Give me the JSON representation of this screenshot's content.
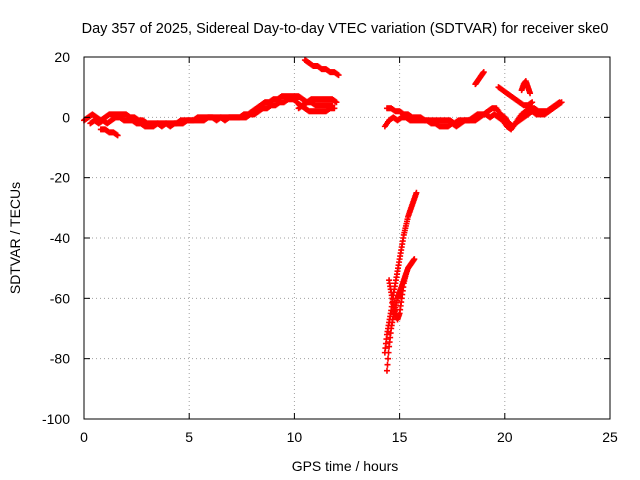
{
  "chart_data": {
    "type": "scatter",
    "title": "Day 357 of 2025, Sidereal Day-to-day VTEC variation (SDTVAR) for receiver ske0",
    "xlabel": "GPS time / hours",
    "ylabel": "SDTVAR / TECUs",
    "xlim": [
      0,
      25
    ],
    "ylim": [
      -100,
      20
    ],
    "xticks": [
      0,
      5,
      10,
      15,
      20,
      25
    ],
    "yticks": [
      -100,
      -80,
      -60,
      -40,
      -20,
      0,
      20
    ],
    "xtick_labels": [
      "0",
      "5",
      "10",
      "15",
      "20",
      "25"
    ],
    "ytick_labels": [
      "-100",
      "-80",
      "-60",
      "-40",
      "-20",
      "0",
      "20"
    ],
    "grid": true,
    "marker": "+",
    "series": [
      {
        "name": "SDTVAR",
        "color": "#ff0000",
        "segments": [
          [
            [
              0.0,
              -1
            ],
            [
              0.2,
              0
            ],
            [
              0.4,
              1
            ],
            [
              0.6,
              0
            ],
            [
              0.8,
              -1
            ],
            [
              1.0,
              0
            ],
            [
              1.2,
              1
            ],
            [
              1.4,
              1
            ],
            [
              1.6,
              1
            ],
            [
              1.8,
              1
            ],
            [
              2.0,
              1
            ],
            [
              2.2,
              0
            ],
            [
              2.4,
              0
            ],
            [
              2.6,
              -1
            ],
            [
              2.8,
              -1
            ],
            [
              3.0,
              -2
            ],
            [
              3.2,
              -2
            ],
            [
              3.4,
              -2
            ],
            [
              3.6,
              -2
            ],
            [
              3.8,
              -2
            ],
            [
              4.0,
              -2
            ],
            [
              4.2,
              -2
            ],
            [
              4.4,
              -2
            ],
            [
              4.6,
              -1
            ],
            [
              4.8,
              -1
            ],
            [
              5.0,
              -1
            ],
            [
              5.2,
              -1
            ],
            [
              5.4,
              0
            ],
            [
              5.6,
              0
            ],
            [
              5.8,
              0
            ],
            [
              6.0,
              0
            ],
            [
              6.2,
              0
            ],
            [
              6.4,
              0
            ],
            [
              6.6,
              0
            ],
            [
              6.8,
              0
            ],
            [
              7.0,
              0
            ],
            [
              7.2,
              0
            ],
            [
              7.4,
              0
            ],
            [
              7.6,
              1
            ],
            [
              7.8,
              1
            ],
            [
              8.0,
              2
            ],
            [
              8.2,
              3
            ],
            [
              8.4,
              4
            ],
            [
              8.6,
              5
            ],
            [
              8.8,
              5
            ],
            [
              9.0,
              6
            ],
            [
              9.2,
              6
            ],
            [
              9.4,
              7
            ],
            [
              9.6,
              7
            ],
            [
              9.8,
              7
            ],
            [
              10.0,
              7
            ],
            [
              10.2,
              7
            ],
            [
              10.4,
              6
            ],
            [
              10.6,
              5
            ],
            [
              10.8,
              5
            ],
            [
              11.0,
              4
            ],
            [
              11.2,
              4
            ],
            [
              11.4,
              4
            ],
            [
              11.6,
              4
            ],
            [
              11.8,
              4
            ]
          ],
          [
            [
              0.3,
              -2
            ],
            [
              0.5,
              -1
            ],
            [
              0.7,
              -2
            ],
            [
              0.9,
              -1
            ],
            [
              1.1,
              -2
            ],
            [
              1.3,
              -1
            ],
            [
              1.5,
              0
            ],
            [
              1.7,
              0
            ],
            [
              1.9,
              -1
            ],
            [
              2.1,
              -1
            ],
            [
              2.3,
              -1
            ],
            [
              2.5,
              -2
            ],
            [
              2.7,
              -2
            ],
            [
              2.9,
              -3
            ],
            [
              3.1,
              -3
            ],
            [
              3.3,
              -3
            ],
            [
              3.5,
              -2
            ],
            [
              3.7,
              -3
            ],
            [
              3.9,
              -2
            ],
            [
              4.1,
              -3
            ],
            [
              4.3,
              -2
            ],
            [
              4.5,
              -2
            ],
            [
              4.7,
              -2
            ],
            [
              4.9,
              -1
            ],
            [
              5.1,
              -1
            ],
            [
              5.3,
              -1
            ],
            [
              5.5,
              -1
            ],
            [
              5.7,
              -1
            ],
            [
              5.9,
              0
            ],
            [
              6.1,
              0
            ],
            [
              6.3,
              -1
            ],
            [
              6.5,
              0
            ],
            [
              6.7,
              -1
            ],
            [
              6.9,
              0
            ],
            [
              7.1,
              0
            ],
            [
              7.3,
              0
            ],
            [
              7.5,
              0
            ],
            [
              7.7,
              0
            ],
            [
              7.9,
              1
            ],
            [
              8.1,
              1
            ],
            [
              8.3,
              2
            ],
            [
              8.5,
              3
            ],
            [
              8.7,
              3
            ],
            [
              8.9,
              4
            ],
            [
              9.1,
              4
            ],
            [
              9.3,
              5
            ],
            [
              9.5,
              5
            ],
            [
              9.7,
              6
            ],
            [
              9.9,
              6
            ],
            [
              10.1,
              6
            ]
          ],
          [
            [
              0.8,
              -4
            ],
            [
              1.0,
              -4
            ],
            [
              1.2,
              -5
            ],
            [
              1.4,
              -5
            ],
            [
              1.6,
              -6
            ]
          ],
          [
            [
              10.1,
              5
            ],
            [
              10.3,
              4
            ],
            [
              10.5,
              3
            ],
            [
              10.7,
              2
            ],
            [
              10.9,
              2
            ],
            [
              11.1,
              2
            ],
            [
              11.3,
              2
            ],
            [
              11.5,
              2
            ],
            [
              11.7,
              3
            ],
            [
              11.9,
              3
            ]
          ],
          [
            [
              10.2,
              3
            ],
            [
              10.4,
              4
            ],
            [
              10.6,
              5
            ],
            [
              10.8,
              6
            ],
            [
              11.0,
              6
            ],
            [
              11.2,
              6
            ],
            [
              11.4,
              6
            ],
            [
              11.6,
              6
            ],
            [
              11.8,
              6
            ],
            [
              12.0,
              5
            ]
          ],
          [
            [
              10.5,
              19
            ],
            [
              10.7,
              18
            ],
            [
              10.9,
              17
            ],
            [
              11.1,
              17
            ],
            [
              11.3,
              16
            ],
            [
              11.5,
              16
            ],
            [
              11.7,
              15
            ],
            [
              11.9,
              15
            ],
            [
              12.1,
              14
            ]
          ],
          [
            [
              14.4,
              3
            ],
            [
              14.6,
              3
            ],
            [
              14.8,
              2
            ],
            [
              15.0,
              2
            ],
            [
              15.2,
              1
            ],
            [
              15.4,
              1
            ],
            [
              15.6,
              0
            ],
            [
              15.8,
              0
            ],
            [
              16.0,
              0
            ],
            [
              16.2,
              -1
            ],
            [
              16.4,
              -1
            ],
            [
              16.6,
              -1
            ],
            [
              16.8,
              -1
            ],
            [
              17.0,
              -1
            ],
            [
              17.2,
              -1
            ],
            [
              17.4,
              -1
            ],
            [
              17.6,
              -2
            ],
            [
              17.8,
              -1
            ],
            [
              18.0,
              -1
            ],
            [
              18.2,
              -1
            ],
            [
              18.4,
              -1
            ],
            [
              18.6,
              -1
            ],
            [
              18.8,
              0
            ],
            [
              19.0,
              1
            ],
            [
              19.2,
              2
            ],
            [
              19.4,
              3
            ],
            [
              19.6,
              3
            ],
            [
              19.8,
              1
            ],
            [
              20.0,
              0
            ],
            [
              20.2,
              -2
            ],
            [
              20.4,
              -3
            ],
            [
              20.6,
              -1
            ],
            [
              20.8,
              1
            ],
            [
              21.0,
              2
            ],
            [
              21.2,
              3
            ],
            [
              21.4,
              3
            ],
            [
              21.6,
              2
            ],
            [
              21.8,
              2
            ],
            [
              22.0,
              2
            ],
            [
              22.2,
              3
            ],
            [
              22.4,
              4
            ],
            [
              22.6,
              5
            ]
          ],
          [
            [
              14.3,
              -3
            ],
            [
              14.5,
              -1
            ],
            [
              14.7,
              0
            ],
            [
              14.9,
              -1
            ],
            [
              15.1,
              0
            ],
            [
              15.3,
              0
            ],
            [
              15.5,
              -1
            ],
            [
              15.7,
              -1
            ],
            [
              15.9,
              -1
            ],
            [
              16.1,
              -1
            ],
            [
              16.3,
              -1
            ],
            [
              16.5,
              -2
            ],
            [
              16.7,
              -2
            ],
            [
              16.9,
              -3
            ],
            [
              17.1,
              -3
            ],
            [
              17.3,
              -3
            ],
            [
              17.5,
              -2
            ],
            [
              17.7,
              -3
            ],
            [
              17.9,
              -2
            ],
            [
              18.1,
              -1
            ],
            [
              18.3,
              -1
            ],
            [
              18.5,
              0
            ],
            [
              18.7,
              1
            ],
            [
              18.9,
              1
            ],
            [
              19.1,
              1
            ],
            [
              19.3,
              0
            ],
            [
              19.5,
              1
            ],
            [
              19.7,
              0
            ],
            [
              19.9,
              -1
            ],
            [
              20.1,
              -3
            ],
            [
              20.3,
              -4
            ],
            [
              20.5,
              -2
            ],
            [
              20.7,
              -1
            ],
            [
              20.9,
              0
            ],
            [
              21.1,
              1
            ],
            [
              21.3,
              2
            ],
            [
              21.5,
              1
            ],
            [
              21.7,
              1
            ],
            [
              21.9,
              1
            ],
            [
              22.1,
              2
            ],
            [
              22.3,
              3
            ],
            [
              22.5,
              4
            ],
            [
              22.7,
              5
            ]
          ],
          [
            [
              18.6,
              11
            ],
            [
              18.7,
              12
            ],
            [
              18.8,
              13
            ],
            [
              18.9,
              14
            ],
            [
              19.0,
              15
            ]
          ],
          [
            [
              19.7,
              10
            ],
            [
              19.9,
              9
            ],
            [
              20.1,
              8
            ],
            [
              20.3,
              7
            ],
            [
              20.5,
              6
            ],
            [
              20.7,
              5
            ],
            [
              20.9,
              4
            ],
            [
              21.1,
              4
            ],
            [
              21.3,
              5
            ]
          ],
          [
            [
              20.8,
              9
            ],
            [
              20.9,
              11
            ],
            [
              21.0,
              12
            ],
            [
              21.1,
              10
            ],
            [
              21.2,
              8
            ]
          ],
          [
            [
              14.3,
              -78
            ],
            [
              14.4,
              -72
            ],
            [
              14.5,
              -68
            ],
            [
              14.6,
              -64
            ],
            [
              14.7,
              -59
            ],
            [
              14.8,
              -55
            ],
            [
              14.9,
              -51
            ],
            [
              15.0,
              -47
            ],
            [
              15.1,
              -43
            ],
            [
              15.2,
              -39
            ],
            [
              15.3,
              -36
            ],
            [
              15.4,
              -33
            ],
            [
              15.5,
              -31
            ],
            [
              15.6,
              -29
            ],
            [
              15.7,
              -27
            ],
            [
              15.8,
              -25
            ]
          ],
          [
            [
              14.4,
              -84
            ],
            [
              14.5,
              -76
            ],
            [
              14.6,
              -70
            ],
            [
              14.7,
              -66
            ],
            [
              14.8,
              -63
            ],
            [
              14.9,
              -60
            ],
            [
              15.0,
              -58
            ],
            [
              15.1,
              -56
            ],
            [
              15.2,
              -54
            ],
            [
              15.3,
              -52
            ],
            [
              15.4,
              -50
            ],
            [
              15.5,
              -49
            ],
            [
              15.6,
              -48
            ],
            [
              15.7,
              -47
            ]
          ],
          [
            [
              14.5,
              -54
            ],
            [
              14.6,
              -58
            ],
            [
              14.7,
              -62
            ],
            [
              14.8,
              -65
            ],
            [
              14.9,
              -67
            ],
            [
              15.0,
              -65
            ],
            [
              15.1,
              -60
            ],
            [
              15.2,
              -55
            ],
            [
              15.3,
              -52
            ]
          ]
        ]
      }
    ]
  }
}
